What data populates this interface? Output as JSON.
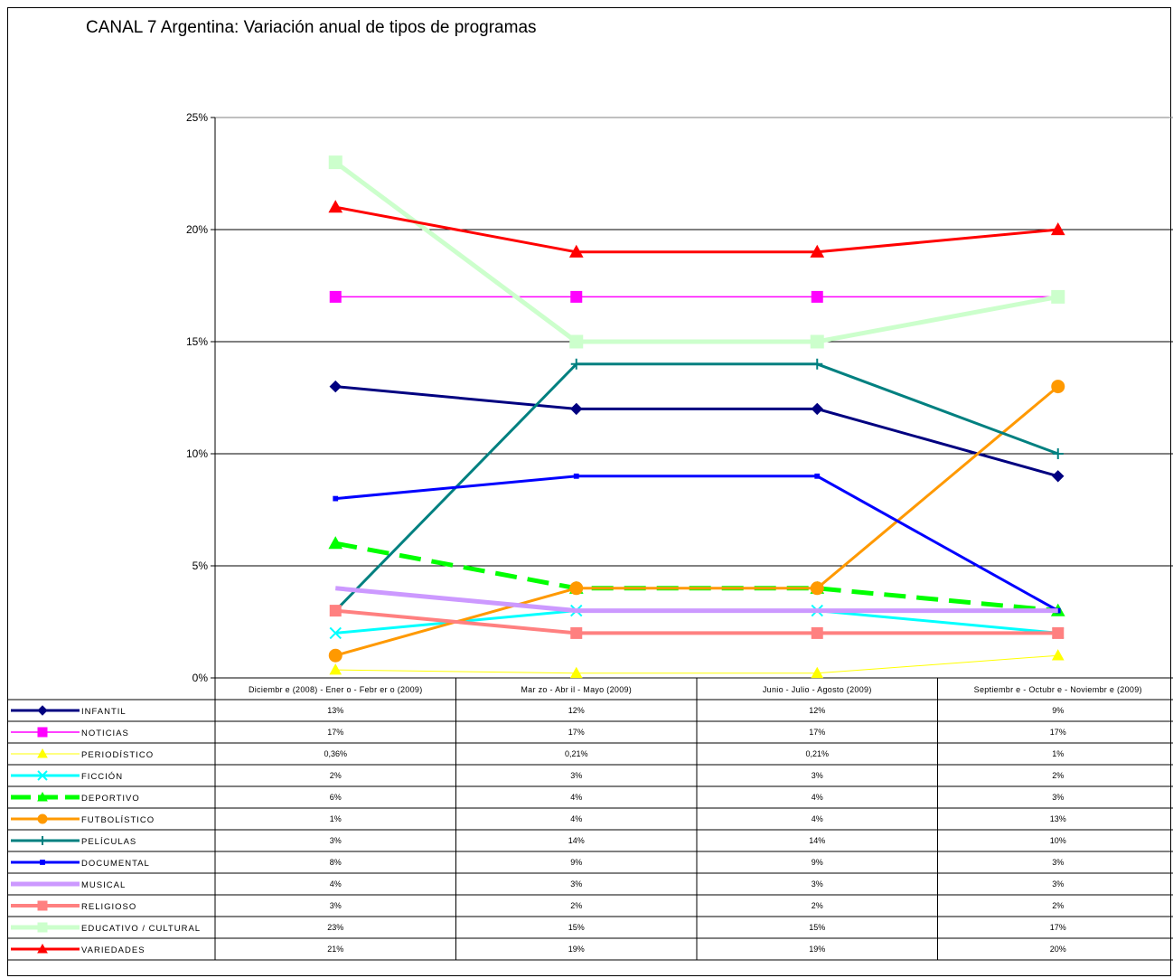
{
  "chart_data": {
    "type": "line",
    "title": "CANAL 7 Argentina: Variación anual de tipos de programas",
    "categories": [
      "Diciembr e (2008) - Ener o - Febr er o (2009)",
      "Mar zo - Abr il - Mayo (2009)",
      "Junio - Julio - Agosto (2009)",
      "Septiembr e - Octubr e - Noviembr e (2009)"
    ],
    "ylim": [
      0,
      25
    ],
    "yticks": [
      "0%",
      "5%",
      "10%",
      "15%",
      "20%",
      "25%"
    ],
    "grid": true,
    "legend": "data-table",
    "series": [
      {
        "name": "INFANTIL",
        "values": [
          13,
          12,
          12,
          9
        ],
        "labels": [
          "13%",
          "12%",
          "12%",
          "9%"
        ],
        "color": "#000080",
        "marker": "diamond",
        "dash": "none"
      },
      {
        "name": "NOTICIAS",
        "values": [
          17,
          17,
          17,
          17
        ],
        "labels": [
          "17%",
          "17%",
          "17%",
          "17%"
        ],
        "color": "#ff00ff",
        "marker": "square",
        "dash": "none"
      },
      {
        "name": "PERIODÍSTICO",
        "values": [
          0.36,
          0.21,
          0.21,
          1
        ],
        "labels": [
          "0,36%",
          "0,21%",
          "0,21%",
          "1%"
        ],
        "color": "#ffff00",
        "marker": "triangle",
        "dash": "none"
      },
      {
        "name": "FICCIÓN",
        "values": [
          2,
          3,
          3,
          2
        ],
        "labels": [
          "2%",
          "3%",
          "3%",
          "2%"
        ],
        "color": "#00ffff",
        "marker": "x",
        "dash": "none"
      },
      {
        "name": "DEPORTIVO",
        "values": [
          6,
          4,
          4,
          3
        ],
        "labels": [
          "6%",
          "4%",
          "4%",
          "3%"
        ],
        "color": "#00ff00",
        "marker": "triangle",
        "dash": "dashed"
      },
      {
        "name": "FUTBOLÍSTICO",
        "values": [
          1,
          4,
          4,
          13
        ],
        "labels": [
          "1%",
          "4%",
          "4%",
          "13%"
        ],
        "color": "#ff9900",
        "marker": "circle",
        "dash": "none"
      },
      {
        "name": "PELÍCULAS",
        "values": [
          3,
          14,
          14,
          10
        ],
        "labels": [
          "3%",
          "14%",
          "14%",
          "10%"
        ],
        "color": "#008080",
        "marker": "plus",
        "dash": "none"
      },
      {
        "name": "DOCUMENTAL",
        "values": [
          8,
          9,
          9,
          3
        ],
        "labels": [
          "8%",
          "9%",
          "9%",
          "3%"
        ],
        "color": "#0000ff",
        "marker": "smallsquare",
        "dash": "none"
      },
      {
        "name": "MUSICAL",
        "values": [
          4,
          3,
          3,
          3
        ],
        "labels": [
          "4%",
          "3%",
          "3%",
          "3%"
        ],
        "color": "#cc99ff",
        "marker": "none",
        "dash": "none"
      },
      {
        "name": "RELIGIOSO",
        "values": [
          3,
          2,
          2,
          2
        ],
        "labels": [
          "3%",
          "2%",
          "2%",
          "2%"
        ],
        "color": "#ff8080",
        "marker": "square",
        "dash": "none"
      },
      {
        "name": "EDUCATIVO / CULTURAL",
        "values": [
          23,
          15,
          15,
          17
        ],
        "labels": [
          "23%",
          "15%",
          "15%",
          "17%"
        ],
        "color": "#ccffcc",
        "marker": "square",
        "dash": "none"
      },
      {
        "name": "VARIEDADES",
        "values": [
          21,
          19,
          19,
          20
        ],
        "labels": [
          "21%",
          "19%",
          "19%",
          "20%"
        ],
        "color": "#ff0000",
        "marker": "triangle",
        "dash": "none"
      }
    ]
  }
}
